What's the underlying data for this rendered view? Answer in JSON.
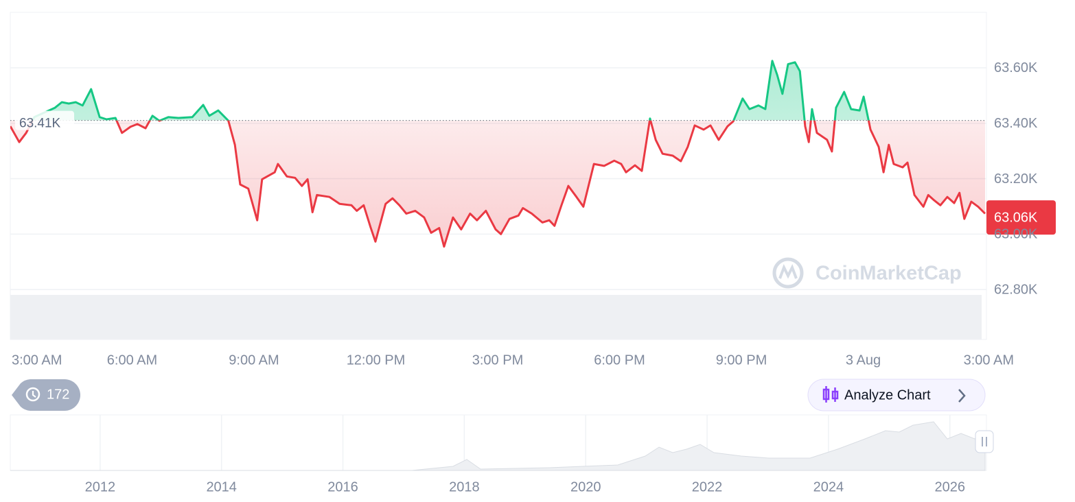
{
  "chart_data": {
    "type": "line",
    "x": [
      3.0,
      3.22,
      3.39,
      3.59,
      4.1,
      4.27,
      4.44,
      4.61,
      4.78,
      4.99,
      5.2,
      5.37,
      5.59,
      5.75,
      5.96,
      6.13,
      6.33,
      6.5,
      6.67,
      6.89,
      7.14,
      7.48,
      7.75,
      7.9,
      8.12,
      8.37,
      8.53,
      8.66,
      8.86,
      9.08,
      9.2,
      9.51,
      9.59,
      9.81,
      10.01,
      10.18,
      10.32,
      10.44,
      10.55,
      10.86,
      11.11,
      11.4,
      11.53,
      11.7,
      11.87,
      11.99,
      12.24,
      12.41,
      12.58,
      12.75,
      12.97,
      13.19,
      13.36,
      13.56,
      13.68,
      13.9,
      14.1,
      14.32,
      14.49,
      14.71,
      14.95,
      15.08,
      15.29,
      15.51,
      15.62,
      15.84,
      16.1,
      16.27,
      16.4,
      16.57,
      16.74,
      16.94,
      17.11,
      17.37,
      17.62,
      17.87,
      18.04,
      18.16,
      18.38,
      18.55,
      18.75,
      18.89,
      19.06,
      19.31,
      19.51,
      19.68,
      19.85,
      20.07,
      20.24,
      20.44,
      20.66,
      20.8,
      21.03,
      21.2,
      21.42,
      21.59,
      21.76,
      21.88,
      22.01,
      22.15,
      22.32,
      22.44,
      22.57,
      22.66,
      22.74,
      22.86,
      23.11,
      23.23,
      23.33,
      23.53,
      23.7,
      23.91,
      24.01,
      24.18,
      24.38,
      24.5,
      24.63,
      24.75,
      24.97,
      25.09,
      25.26,
      25.48,
      25.6,
      25.73,
      25.9,
      26.07,
      26.24,
      26.37,
      26.49,
      26.66,
      26.83,
      27.0
    ],
    "series": [
      {
        "up_color": "#16c784",
        "down_color": "#ea3943",
        "values": [
          63.389,
          63.332,
          63.365,
          63.422,
          63.456,
          63.476,
          63.471,
          63.476,
          63.464,
          63.523,
          63.422,
          63.414,
          63.419,
          63.365,
          63.387,
          63.397,
          63.382,
          63.427,
          63.409,
          63.422,
          63.419,
          63.422,
          63.466,
          63.427,
          63.446,
          63.409,
          63.322,
          63.179,
          63.164,
          63.05,
          63.198,
          63.223,
          63.253,
          63.208,
          63.203,
          63.174,
          63.198,
          63.079,
          63.141,
          63.134,
          63.109,
          63.104,
          63.084,
          63.104,
          63.025,
          62.973,
          63.109,
          63.129,
          63.104,
          63.074,
          63.084,
          63.06,
          63.005,
          63.022,
          62.955,
          63.06,
          63.017,
          63.074,
          63.05,
          63.084,
          63.017,
          63.0,
          63.055,
          63.067,
          63.094,
          63.074,
          63.042,
          63.05,
          63.03,
          63.104,
          63.174,
          63.134,
          63.099,
          63.253,
          63.246,
          63.265,
          63.253,
          63.223,
          63.248,
          63.228,
          63.417,
          63.34,
          63.29,
          63.283,
          63.263,
          63.315,
          63.392,
          63.377,
          63.392,
          63.34,
          63.389,
          63.407,
          63.489,
          63.451,
          63.464,
          63.451,
          63.625,
          63.575,
          63.506,
          63.613,
          63.62,
          63.588,
          63.389,
          63.332,
          63.451,
          63.365,
          63.34,
          63.298,
          63.456,
          63.513,
          63.451,
          63.446,
          63.496,
          63.377,
          63.315,
          63.223,
          63.322,
          63.253,
          63.241,
          63.258,
          63.141,
          63.099,
          63.141,
          63.124,
          63.104,
          63.134,
          63.112,
          63.149,
          63.055,
          63.117,
          63.099,
          63.074
        ]
      }
    ],
    "xlim": [
      3,
      27
    ],
    "xticks": [
      {
        "value": 3,
        "label": "3:00 AM"
      },
      {
        "value": 6,
        "label": "6:00 AM"
      },
      {
        "value": 9,
        "label": "9:00 AM"
      },
      {
        "value": 12,
        "label": "12:00 PM"
      },
      {
        "value": 15,
        "label": "3:00 PM"
      },
      {
        "value": 18,
        "label": "6:00 PM"
      },
      {
        "value": 21,
        "label": "9:00 PM"
      },
      {
        "value": 24,
        "label": "3 Aug"
      },
      {
        "value": 27,
        "label": "3:00 AM"
      }
    ],
    "ylim": [
      62.62,
      63.8
    ],
    "yticks": [
      {
        "value": 62.8,
        "label": "62.80K"
      },
      {
        "value": 63.0,
        "label": "63.00K"
      },
      {
        "value": 63.2,
        "label": "63.20K"
      },
      {
        "value": 63.4,
        "label": "63.40K"
      },
      {
        "value": 63.6,
        "label": "63.60K"
      }
    ],
    "grid": true,
    "baseline": {
      "value": 63.41,
      "label": "63.41K"
    },
    "current_price": {
      "value": 63.06,
      "label": "63.06K"
    },
    "navigator": {
      "xlim": [
        2010.52,
        2026.58
      ],
      "xticks": [
        2012,
        2014,
        2016,
        2018,
        2020,
        2022,
        2024,
        2026
      ]
    }
  },
  "controls": {
    "history_count": 172,
    "analyze_button": "Analyze Chart",
    "watermark": "CoinMarketCap"
  }
}
